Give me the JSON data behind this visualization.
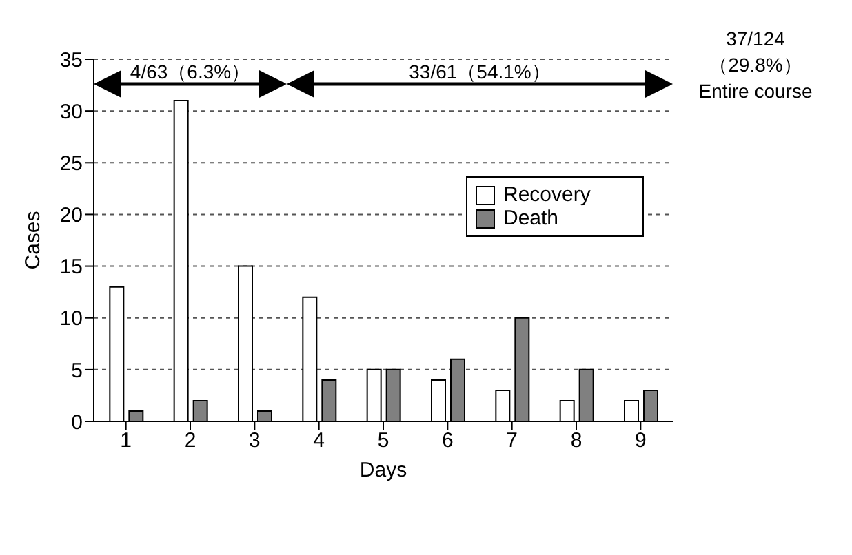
{
  "chart_data": {
    "type": "bar",
    "xlabel": "Days",
    "ylabel": "Cases",
    "categories": [
      "1",
      "2",
      "3",
      "4",
      "5",
      "6",
      "7",
      "8",
      "9"
    ],
    "series": [
      {
        "name": "Recovery",
        "color": "#ffffff",
        "values": [
          13,
          31,
          15,
          12,
          5,
          4,
          3,
          2,
          2
        ]
      },
      {
        "name": "Death",
        "color": "#808080",
        "values": [
          1,
          2,
          1,
          4,
          5,
          6,
          10,
          5,
          3
        ]
      }
    ],
    "ylim": [
      0,
      35
    ],
    "yticks": [
      0,
      5,
      10,
      15,
      20,
      25,
      30,
      35
    ],
    "grid": "y",
    "legend": "top right",
    "annotations": [
      "4/63（6.3%）",
      "33/61（54.1%）",
      "37/124\n（29.8%）\nEntire course"
    ]
  }
}
